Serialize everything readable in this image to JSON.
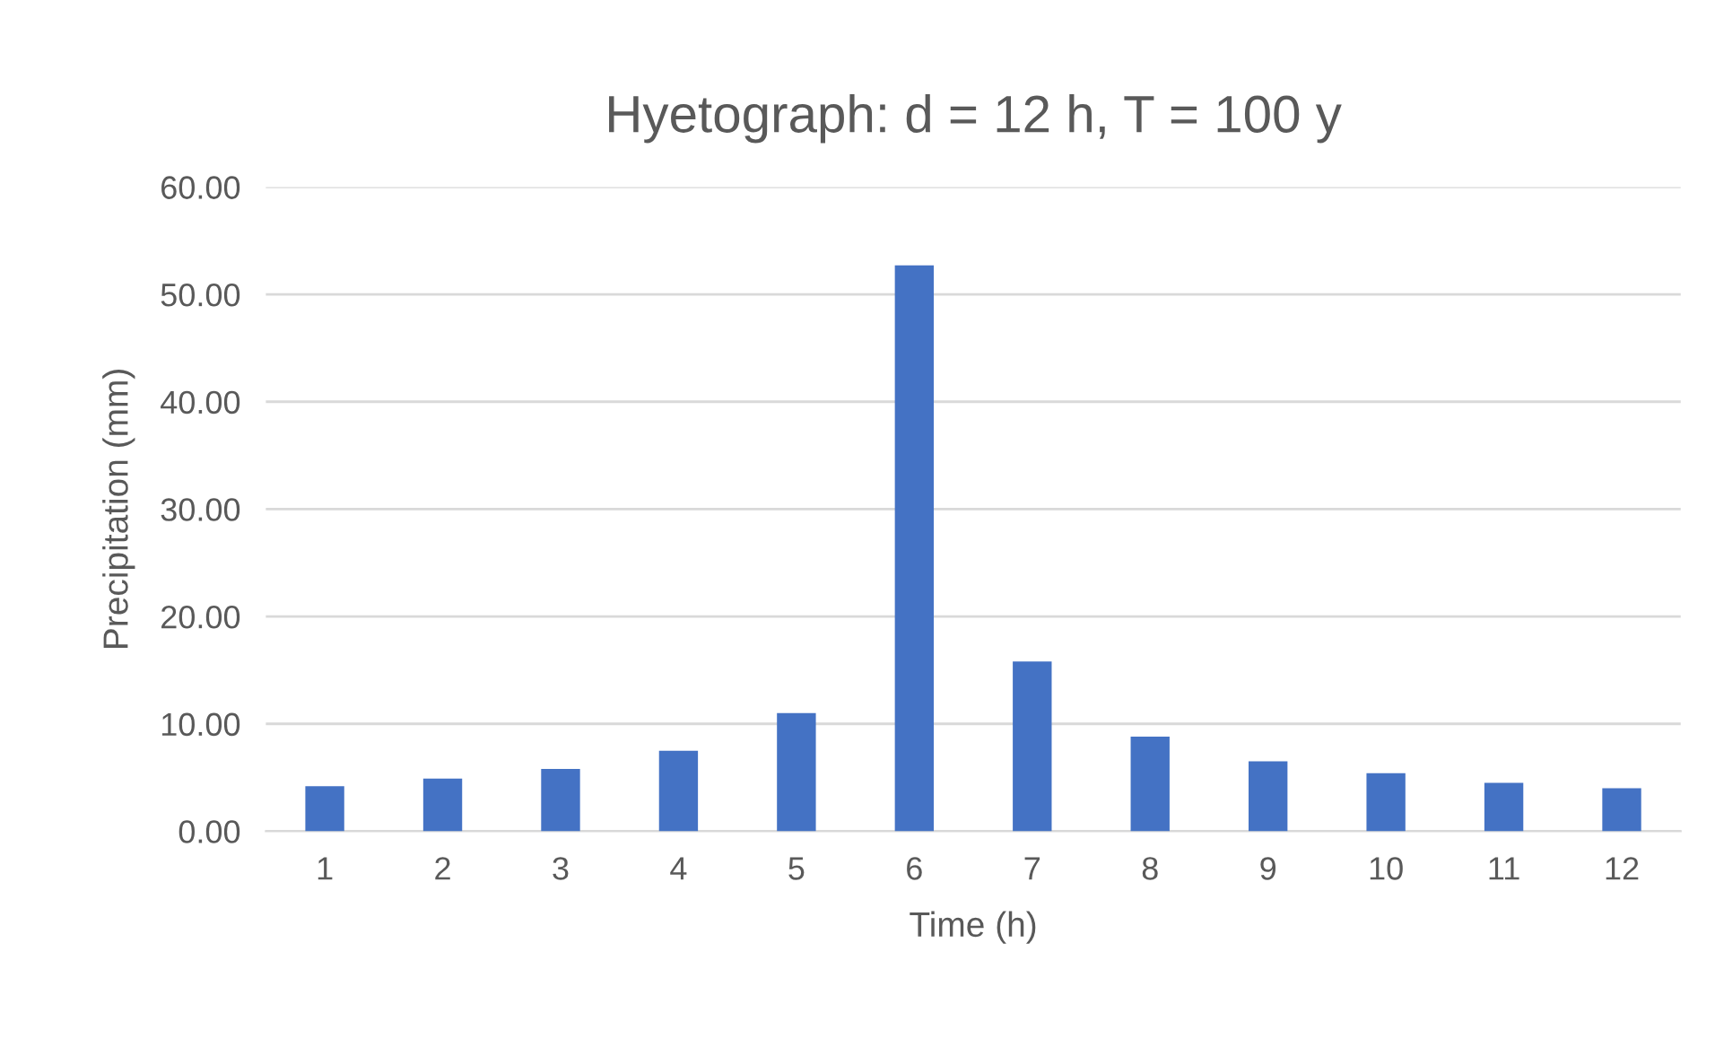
{
  "chart_data": {
    "type": "bar",
    "title": "Hyetograph: d = 12 h, T = 100 y",
    "xlabel": "Time (h)",
    "ylabel": "Precipitation (mm)",
    "categories": [
      "1",
      "2",
      "3",
      "4",
      "5",
      "6",
      "7",
      "8",
      "9",
      "10",
      "11",
      "12"
    ],
    "values": [
      4.2,
      4.9,
      5.8,
      7.5,
      11.0,
      52.7,
      15.8,
      8.8,
      6.5,
      5.4,
      4.5,
      4.0
    ],
    "color": "#4472c4",
    "ylim": [
      0,
      60
    ],
    "yticks": [
      {
        "value": 0,
        "label": "0.00"
      },
      {
        "value": 10,
        "label": "10.00"
      },
      {
        "value": 20,
        "label": "20.00"
      },
      {
        "value": 30,
        "label": "30.00"
      },
      {
        "value": 40,
        "label": "40.00"
      },
      {
        "value": 50,
        "label": "50.00"
      },
      {
        "value": 60,
        "label": "60.00"
      }
    ],
    "grid": "y"
  }
}
